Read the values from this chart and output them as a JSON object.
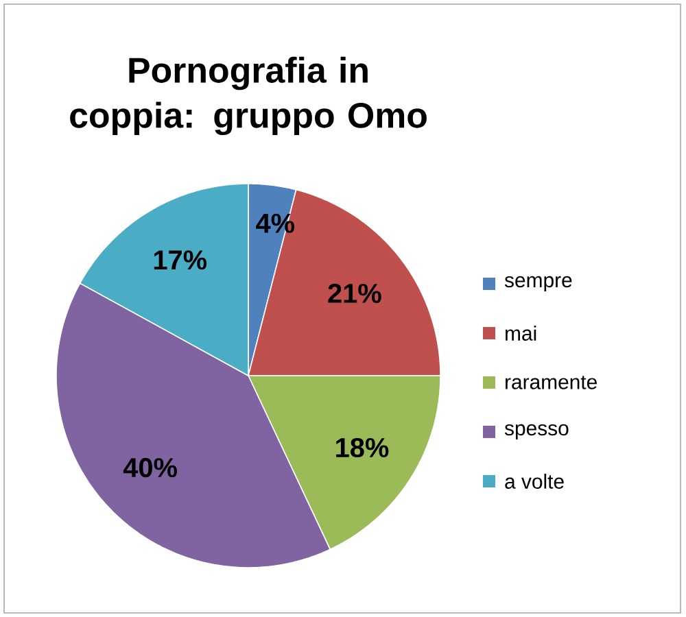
{
  "chart_data": {
    "type": "pie",
    "title": "Pornografia in coppia: gruppo Omo",
    "categories": [
      "sempre",
      "mai",
      "raramente",
      "spesso",
      "a volte"
    ],
    "values": [
      4,
      21,
      18,
      40,
      17
    ],
    "value_labels": [
      "4%",
      "21%",
      "18%",
      "40%",
      "17%"
    ],
    "colors": [
      "#4f81bd",
      "#c0504d",
      "#9bbb59",
      "#8064a2",
      "#4bacc6"
    ],
    "legend": "right"
  }
}
